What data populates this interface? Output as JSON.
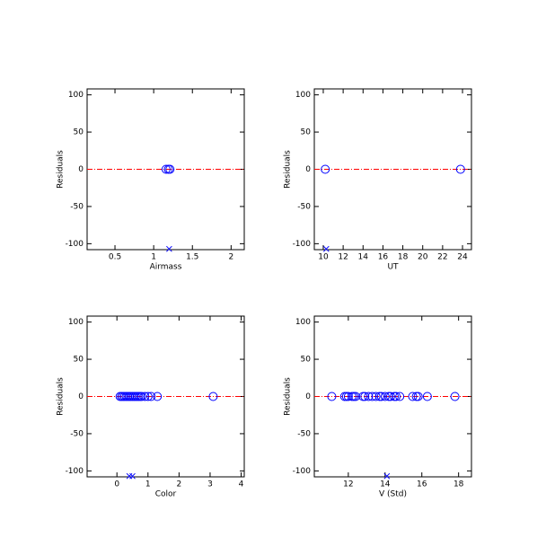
{
  "chart_data": [
    {
      "type": "scatter",
      "xlabel": "Airmass",
      "ylabel": "Residuals",
      "xlim": [
        0.14,
        2.17
      ],
      "xticks": [
        0.5,
        1.0,
        1.5,
        2.0
      ],
      "ylim": [
        -108,
        108
      ],
      "yticks": [
        100,
        50,
        0,
        -50,
        -100
      ],
      "hline": 0,
      "hline_color": "#ff0000",
      "series": [
        {
          "color": "#0000ff",
          "marker": "o",
          "x": [
            1.16,
            1.19,
            1.21
          ],
          "values": [
            0,
            0,
            0
          ]
        },
        {
          "color": "#0000ff",
          "marker": "x",
          "x": [
            1.2
          ],
          "values": [
            -107
          ]
        }
      ]
    },
    {
      "type": "scatter",
      "xlabel": "UT",
      "ylabel": "Residuals",
      "xlim": [
        9.1,
        24.9
      ],
      "xticks": [
        10,
        12,
        14,
        16,
        18,
        20,
        22,
        24
      ],
      "ylim": [
        -108,
        108
      ],
      "yticks": [
        100,
        50,
        0,
        -50,
        -100
      ],
      "hline": 0,
      "hline_color": "#ff0000",
      "series": [
        {
          "color": "#0000ff",
          "marker": "o",
          "x": [
            10.2,
            23.8
          ],
          "values": [
            0,
            0
          ]
        },
        {
          "color": "#0000ff",
          "marker": "x",
          "x": [
            10.3
          ],
          "values": [
            -107
          ]
        }
      ]
    },
    {
      "type": "scatter",
      "xlabel": "Color",
      "ylabel": "Residuals",
      "xlim": [
        -0.96,
        4.1
      ],
      "xticks": [
        0,
        1,
        2,
        3,
        4
      ],
      "ylim": [
        -108,
        108
      ],
      "yticks": [
        100,
        50,
        0,
        -50,
        -100
      ],
      "hline": 0,
      "hline_color": "#ff0000",
      "series": [
        {
          "color": "#0000ff",
          "marker": "o",
          "x": [
            0.1,
            0.15,
            0.2,
            0.25,
            0.3,
            0.35,
            0.4,
            0.45,
            0.5,
            0.55,
            0.6,
            0.65,
            0.7,
            0.75,
            0.8,
            0.9,
            1.0,
            1.1,
            1.3,
            3.1
          ],
          "values": [
            0,
            0,
            0,
            0,
            0,
            0,
            0,
            0,
            0,
            0,
            0,
            0,
            0,
            0,
            0,
            0,
            0,
            0,
            0,
            0
          ]
        },
        {
          "color": "#0000ff",
          "marker": "x",
          "x": [
            0.4,
            0.5
          ],
          "values": [
            -107,
            -107
          ]
        }
      ]
    },
    {
      "type": "scatter",
      "xlabel": "V (Std)",
      "ylabel": "Residuals",
      "xlim": [
        10.15,
        18.7
      ],
      "xticks": [
        12,
        14,
        16,
        18
      ],
      "ylim": [
        -108,
        108
      ],
      "yticks": [
        100,
        50,
        0,
        -50,
        -100
      ],
      "hline": 0,
      "hline_color": "#ff0000",
      "series": [
        {
          "color": "#0000ff",
          "marker": "o",
          "x": [
            11.1,
            11.8,
            11.9,
            12.0,
            12.2,
            12.3,
            12.4,
            12.8,
            12.9,
            13.1,
            13.3,
            13.5,
            13.7,
            13.8,
            14.0,
            14.2,
            14.3,
            14.5,
            14.6,
            14.8,
            15.5,
            15.7,
            15.8,
            16.3,
            17.8
          ],
          "values": [
            0,
            0,
            0,
            0,
            0,
            0,
            0,
            0,
            0,
            0,
            0,
            0,
            0,
            0,
            0,
            0,
            0,
            0,
            0,
            0,
            0,
            0,
            0,
            0,
            0
          ]
        },
        {
          "color": "#0000ff",
          "marker": "x",
          "x": [
            14.1
          ],
          "values": [
            -107
          ]
        }
      ]
    }
  ]
}
